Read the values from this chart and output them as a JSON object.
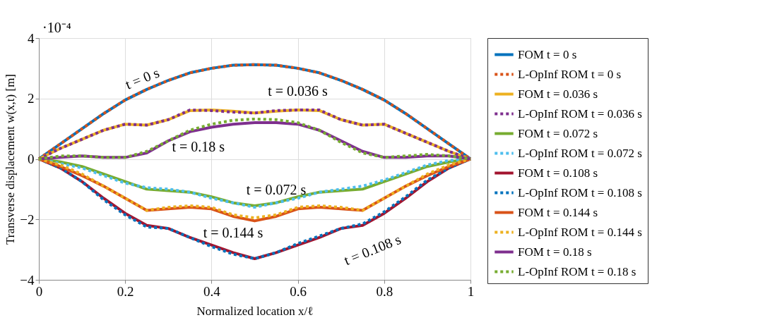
{
  "chart_data": {
    "type": "line",
    "xlabel": "Normalized location x/ℓ",
    "ylabel": "Transverse displacement w(x,t) [m]",
    "x": [
      0,
      0.05,
      0.1,
      0.15,
      0.2,
      0.25,
      0.3,
      0.35,
      0.4,
      0.45,
      0.5,
      0.55,
      0.6,
      0.65,
      0.7,
      0.75,
      0.8,
      0.85,
      0.9,
      0.95,
      1
    ],
    "xlim": [
      0,
      1
    ],
    "xticks": [
      0,
      0.2,
      0.4,
      0.6,
      0.8,
      1
    ],
    "ylim": [
      -4,
      4
    ],
    "yticks": [
      -4,
      -2,
      0,
      2,
      4
    ],
    "grid": true,
    "legend": "right",
    "marker": "none",
    "series": [
      {
        "name": "FOM t = 0 s",
        "color": "#0072bd",
        "line_style": "solid",
        "values": [
          0,
          0.5,
          1.0,
          1.5,
          1.95,
          2.3,
          2.6,
          2.85,
          3.0,
          3.1,
          3.12,
          3.1,
          3.0,
          2.85,
          2.6,
          2.3,
          1.95,
          1.5,
          1.0,
          0.5,
          0
        ]
      },
      {
        "name": "L-OpInf ROM t = 0 s",
        "color": "#d95319",
        "line_style": "dotted",
        "values": [
          0,
          0.5,
          1.0,
          1.5,
          1.95,
          2.3,
          2.6,
          2.85,
          3.0,
          3.1,
          3.12,
          3.1,
          3.0,
          2.85,
          2.6,
          2.3,
          1.95,
          1.5,
          1.0,
          0.5,
          0
        ]
      },
      {
        "name": "FOM t = 0.036 s",
        "color": "#edb120",
        "line_style": "solid",
        "values": [
          0,
          0.35,
          0.65,
          0.95,
          1.15,
          1.12,
          1.3,
          1.6,
          1.62,
          1.58,
          1.52,
          1.58,
          1.62,
          1.6,
          1.3,
          1.12,
          1.15,
          0.85,
          0.55,
          0.25,
          0
        ]
      },
      {
        "name": "L-OpInf ROM t = 0.036 s",
        "color": "#7e2f8e",
        "line_style": "dotted",
        "values": [
          0,
          0.35,
          0.65,
          0.95,
          1.15,
          1.12,
          1.3,
          1.62,
          1.6,
          1.55,
          1.52,
          1.6,
          1.62,
          1.62,
          1.3,
          1.12,
          1.15,
          0.85,
          0.55,
          0.25,
          0
        ]
      },
      {
        "name": "FOM t = 0.072 s",
        "color": "#77ac30",
        "line_style": "solid",
        "values": [
          0,
          -0.1,
          -0.25,
          -0.5,
          -0.75,
          -1.0,
          -1.05,
          -1.1,
          -1.25,
          -1.45,
          -1.55,
          -1.45,
          -1.25,
          -1.1,
          -1.05,
          -1.0,
          -0.75,
          -0.5,
          -0.25,
          -0.1,
          0
        ]
      },
      {
        "name": "L-OpInf ROM t = 0.072 s",
        "color": "#4dbeee",
        "line_style": "dotted",
        "values": [
          0,
          -0.15,
          -0.3,
          -0.55,
          -0.8,
          -0.95,
          -1.0,
          -1.1,
          -1.3,
          -1.45,
          -1.6,
          -1.45,
          -1.3,
          -1.1,
          -1.0,
          -0.9,
          -0.7,
          -0.45,
          -0.2,
          -0.05,
          0
        ]
      },
      {
        "name": "FOM t = 0.108 s",
        "color": "#a2142f",
        "line_style": "solid",
        "values": [
          0,
          -0.3,
          -0.75,
          -1.3,
          -1.8,
          -2.2,
          -2.3,
          -2.6,
          -2.85,
          -3.1,
          -3.3,
          -3.1,
          -2.85,
          -2.6,
          -2.3,
          -2.2,
          -1.8,
          -1.3,
          -0.75,
          -0.3,
          0
        ]
      },
      {
        "name": "L-OpInf ROM t = 0.108 s",
        "color": "#0072bd",
        "line_style": "dotted",
        "values": [
          0,
          -0.3,
          -0.75,
          -1.35,
          -1.85,
          -2.25,
          -2.3,
          -2.6,
          -2.9,
          -3.15,
          -3.3,
          -3.1,
          -2.8,
          -2.55,
          -2.3,
          -2.15,
          -1.75,
          -1.25,
          -0.7,
          -0.3,
          0
        ]
      },
      {
        "name": "FOM t = 0.144 s",
        "color": "#d95319",
        "line_style": "solid",
        "values": [
          0,
          -0.25,
          -0.55,
          -0.9,
          -1.3,
          -1.7,
          -1.65,
          -1.6,
          -1.65,
          -1.9,
          -2.05,
          -1.9,
          -1.65,
          -1.6,
          -1.65,
          -1.7,
          -1.3,
          -0.9,
          -0.55,
          -0.25,
          0
        ]
      },
      {
        "name": "L-OpInf ROM t = 0.144 s",
        "color": "#edb120",
        "line_style": "dotted",
        "values": [
          0,
          -0.2,
          -0.5,
          -0.9,
          -1.3,
          -1.7,
          -1.6,
          -1.55,
          -1.6,
          -1.85,
          -1.95,
          -1.85,
          -1.6,
          -1.55,
          -1.6,
          -1.7,
          -1.3,
          -0.9,
          -0.5,
          -0.2,
          0
        ]
      },
      {
        "name": "FOM t = 0.18 s",
        "color": "#7e2f8e",
        "line_style": "solid",
        "values": [
          0,
          0.05,
          0.1,
          0.05,
          0.05,
          0.2,
          0.6,
          0.9,
          1.05,
          1.15,
          1.2,
          1.2,
          1.15,
          0.95,
          0.6,
          0.25,
          0.05,
          0.05,
          0.1,
          0.1,
          0
        ]
      },
      {
        "name": "L-OpInf ROM t = 0.18 s",
        "color": "#77ac30",
        "line_style": "dotted",
        "values": [
          0,
          0.1,
          0.1,
          0.05,
          0.05,
          0.25,
          0.6,
          0.95,
          1.15,
          1.28,
          1.32,
          1.3,
          1.2,
          0.95,
          0.55,
          0.2,
          0.05,
          0.1,
          0.15,
          0.1,
          0
        ]
      }
    ],
    "annotations": [
      "·10⁻⁴",
      {
        "text": "t = 0 s",
        "x": 0.25,
        "y": 2.3
      },
      {
        "text": "t = 0.036 s",
        "x": 0.6,
        "y": 1.62
      },
      {
        "text": "t = 0.18 s",
        "x": 0.35,
        "y": 0.9
      },
      {
        "text": "t = 0.072 s",
        "x": 0.55,
        "y": -1.45
      },
      {
        "text": "t = 0.144 s",
        "x": 0.45,
        "y": -1.9
      },
      {
        "text": "t = 0.108 s",
        "x": 0.75,
        "y": -2.2
      }
    ]
  }
}
